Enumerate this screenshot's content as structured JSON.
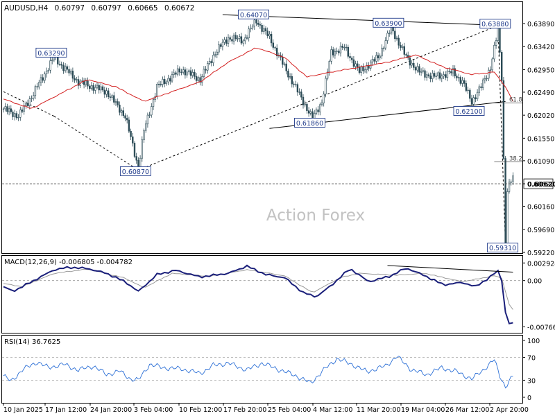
{
  "chart_data": {
    "type": "candlestick",
    "header": {
      "symbol": "AUDUSD,H4",
      "open": "0.60797",
      "high": "0.60797",
      "low": "0.60665",
      "close": "0.60672"
    },
    "watermark": "Action Forex",
    "price_axis": {
      "ticks": [
        "0.63890",
        "0.63420",
        "0.62950",
        "0.62490",
        "0.62020",
        "0.61550",
        "0.61090",
        "0.60620",
        "0.60160",
        "0.59690",
        "0.59220"
      ],
      "current_price": "0.60620"
    },
    "x_axis_labels": [
      "10 Jan 2025",
      "17 Jan 12:00",
      "24 Jan 20:00",
      "3 Feb 04:00",
      "10 Feb 12:00",
      "17 Feb 20:00",
      "25 Feb 04:00",
      "4 Mar 12:00",
      "11 Mar 20:00",
      "19 Mar 04:00",
      "26 Mar 12:00",
      "2 Apr 20:00"
    ],
    "price_labels": [
      {
        "text": "0.63290",
        "idx": 27,
        "price": 0.6329
      },
      {
        "text": "0.60870",
        "idx": 72,
        "price": 0.6087
      },
      {
        "text": "0.64070",
        "idx": 135,
        "price": 0.6407
      },
      {
        "text": "0.61860",
        "idx": 165,
        "price": 0.6186
      },
      {
        "text": "0.63900",
        "idx": 207,
        "price": 0.639
      },
      {
        "text": "0.62100",
        "idx": 250,
        "price": 0.621
      },
      {
        "text": "0.63880",
        "idx": 264,
        "price": 0.6388
      },
      {
        "text": "0.59310",
        "idx": 268,
        "price": 0.5931
      }
    ],
    "fib_labels": [
      {
        "text": "61.8",
        "price": 0.6227
      },
      {
        "text": "38.2",
        "price": 0.6107
      }
    ],
    "price_path": [
      {
        "i": 0,
        "p": 0.6215
      },
      {
        "i": 8,
        "p": 0.62
      },
      {
        "i": 15,
        "p": 0.624
      },
      {
        "i": 27,
        "p": 0.632
      },
      {
        "i": 32,
        "p": 0.63
      },
      {
        "i": 40,
        "p": 0.627
      },
      {
        "i": 55,
        "p": 0.625
      },
      {
        "i": 65,
        "p": 0.62
      },
      {
        "i": 72,
        "p": 0.6095
      },
      {
        "i": 75,
        "p": 0.617
      },
      {
        "i": 82,
        "p": 0.626
      },
      {
        "i": 95,
        "p": 0.6295
      },
      {
        "i": 105,
        "p": 0.6275
      },
      {
        "i": 113,
        "p": 0.633
      },
      {
        "i": 120,
        "p": 0.636
      },
      {
        "i": 128,
        "p": 0.6355
      },
      {
        "i": 135,
        "p": 0.6395
      },
      {
        "i": 142,
        "p": 0.636
      },
      {
        "i": 150,
        "p": 0.63
      },
      {
        "i": 160,
        "p": 0.623
      },
      {
        "i": 165,
        "p": 0.6195
      },
      {
        "i": 170,
        "p": 0.623
      },
      {
        "i": 175,
        "p": 0.633
      },
      {
        "i": 182,
        "p": 0.634
      },
      {
        "i": 190,
        "p": 0.629
      },
      {
        "i": 200,
        "p": 0.632
      },
      {
        "i": 207,
        "p": 0.638
      },
      {
        "i": 215,
        "p": 0.632
      },
      {
        "i": 222,
        "p": 0.629
      },
      {
        "i": 230,
        "p": 0.628
      },
      {
        "i": 240,
        "p": 0.629
      },
      {
        "i": 245,
        "p": 0.627
      },
      {
        "i": 250,
        "p": 0.623
      },
      {
        "i": 255,
        "p": 0.626
      },
      {
        "i": 260,
        "p": 0.63
      },
      {
        "i": 264,
        "p": 0.6375
      },
      {
        "i": 266,
        "p": 0.628
      },
      {
        "i": 268,
        "p": 0.5945
      },
      {
        "i": 269,
        "p": 0.605
      },
      {
        "i": 272,
        "p": 0.6075
      }
    ],
    "ma_path": [
      {
        "i": 0,
        "p": 0.6235
      },
      {
        "i": 15,
        "p": 0.6215
      },
      {
        "i": 30,
        "p": 0.6245
      },
      {
        "i": 45,
        "p": 0.6275
      },
      {
        "i": 60,
        "p": 0.626
      },
      {
        "i": 75,
        "p": 0.623
      },
      {
        "i": 90,
        "p": 0.625
      },
      {
        "i": 105,
        "p": 0.627
      },
      {
        "i": 120,
        "p": 0.631
      },
      {
        "i": 135,
        "p": 0.634
      },
      {
        "i": 150,
        "p": 0.632
      },
      {
        "i": 162,
        "p": 0.628
      },
      {
        "i": 175,
        "p": 0.629
      },
      {
        "i": 190,
        "p": 0.63
      },
      {
        "i": 205,
        "p": 0.631
      },
      {
        "i": 220,
        "p": 0.6325
      },
      {
        "i": 235,
        "p": 0.63
      },
      {
        "i": 250,
        "p": 0.6285
      },
      {
        "i": 262,
        "p": 0.629
      },
      {
        "i": 268,
        "p": 0.626
      },
      {
        "i": 272,
        "p": 0.623
      }
    ],
    "trendlines": [
      {
        "kind": "solid",
        "a": {
          "i": 117,
          "p": 0.6407
        },
        "b": {
          "i": 268,
          "p": 0.6385
        }
      },
      {
        "kind": "solid",
        "a": {
          "i": 142,
          "p": 0.6175
        },
        "b": {
          "i": 268,
          "p": 0.623
        }
      },
      {
        "kind": "dashed",
        "a": {
          "i": 0,
          "p": 0.625
        },
        "b": {
          "i": 27,
          "p": 0.62
        }
      },
      {
        "kind": "dashed",
        "a": {
          "i": 27,
          "p": 0.62
        },
        "b": {
          "i": 72,
          "p": 0.609
        }
      },
      {
        "kind": "dashed",
        "a": {
          "i": 72,
          "p": 0.609
        },
        "b": {
          "i": 264,
          "p": 0.6385
        }
      },
      {
        "kind": "dashed",
        "a": {
          "i": 264,
          "p": 0.6385
        },
        "b": {
          "i": 268,
          "p": 0.5935
        }
      }
    ],
    "macd": {
      "label": "MACD(12,26,9) -0.006805 -0.004782",
      "ticks": [
        "0.002924",
        "0.00",
        "-0.007661"
      ],
      "ylim": [
        -0.0082,
        0.0033
      ],
      "macd_path": [
        {
          "i": 0,
          "v": -0.001
        },
        {
          "i": 5,
          "v": -0.0018
        },
        {
          "i": 15,
          "v": -0.0002
        },
        {
          "i": 27,
          "v": 0.0018
        },
        {
          "i": 35,
          "v": 0.0022
        },
        {
          "i": 45,
          "v": 0.002
        },
        {
          "i": 55,
          "v": 0.0012
        },
        {
          "i": 65,
          "v": -0.0002
        },
        {
          "i": 72,
          "v": -0.0018
        },
        {
          "i": 82,
          "v": 0.001
        },
        {
          "i": 92,
          "v": 0.0017
        },
        {
          "i": 105,
          "v": 0.0006
        },
        {
          "i": 120,
          "v": 0.0012
        },
        {
          "i": 130,
          "v": 0.0024
        },
        {
          "i": 140,
          "v": 0.001
        },
        {
          "i": 150,
          "v": 0.0005
        },
        {
          "i": 160,
          "v": -0.002
        },
        {
          "i": 167,
          "v": -0.0027
        },
        {
          "i": 175,
          "v": -0.0008
        },
        {
          "i": 185,
          "v": 0.002
        },
        {
          "i": 195,
          "v": -0.0002
        },
        {
          "i": 207,
          "v": 0.0008
        },
        {
          "i": 215,
          "v": 0.0021
        },
        {
          "i": 225,
          "v": 0.0008
        },
        {
          "i": 235,
          "v": -0.0007
        },
        {
          "i": 245,
          "v": -0.0003
        },
        {
          "i": 252,
          "v": -0.001
        },
        {
          "i": 258,
          "v": 0.0002
        },
        {
          "i": 264,
          "v": 0.0016
        },
        {
          "i": 266,
          "v": 0.0
        },
        {
          "i": 268,
          "v": -0.0052
        },
        {
          "i": 270,
          "v": -0.0072
        },
        {
          "i": 272,
          "v": -0.007
        }
      ],
      "signal_path": [
        {
          "i": 0,
          "v": -0.0005
        },
        {
          "i": 10,
          "v": -0.001
        },
        {
          "i": 27,
          "v": 0.0012
        },
        {
          "i": 45,
          "v": 0.0019
        },
        {
          "i": 65,
          "v": 0.0004
        },
        {
          "i": 75,
          "v": -0.0012
        },
        {
          "i": 90,
          "v": 0.0012
        },
        {
          "i": 110,
          "v": 0.0007
        },
        {
          "i": 130,
          "v": 0.0018
        },
        {
          "i": 150,
          "v": 0.0008
        },
        {
          "i": 165,
          "v": -0.002
        },
        {
          "i": 180,
          "v": 0.0005
        },
        {
          "i": 190,
          "v": 0.0012
        },
        {
          "i": 210,
          "v": 0.0009
        },
        {
          "i": 225,
          "v": 0.0012
        },
        {
          "i": 245,
          "v": -0.0002
        },
        {
          "i": 262,
          "v": 0.0008
        },
        {
          "i": 266,
          "v": 0.0004
        },
        {
          "i": 270,
          "v": -0.004
        },
        {
          "i": 272,
          "v": -0.0048
        }
      ],
      "divergence": {
        "a": {
          "i": 205,
          "v": 0.0025
        },
        "b": {
          "i": 272,
          "v": 0.0014
        }
      }
    },
    "rsi": {
      "label": "RSI(14) 36.7625",
      "ticks": [
        "100",
        "70",
        "30",
        "0"
      ],
      "levels": [
        70,
        30
      ],
      "ylim": [
        0,
        100
      ],
      "path": [
        {
          "i": 0,
          "v": 38
        },
        {
          "i": 4,
          "v": 28
        },
        {
          "i": 10,
          "v": 48
        },
        {
          "i": 18,
          "v": 62
        },
        {
          "i": 24,
          "v": 52
        },
        {
          "i": 32,
          "v": 58
        },
        {
          "i": 40,
          "v": 48
        },
        {
          "i": 48,
          "v": 55
        },
        {
          "i": 55,
          "v": 40
        },
        {
          "i": 62,
          "v": 46
        },
        {
          "i": 68,
          "v": 32
        },
        {
          "i": 72,
          "v": 30
        },
        {
          "i": 78,
          "v": 58
        },
        {
          "i": 85,
          "v": 52
        },
        {
          "i": 95,
          "v": 50
        },
        {
          "i": 105,
          "v": 42
        },
        {
          "i": 112,
          "v": 56
        },
        {
          "i": 120,
          "v": 60
        },
        {
          "i": 130,
          "v": 48
        },
        {
          "i": 138,
          "v": 60
        },
        {
          "i": 146,
          "v": 50
        },
        {
          "i": 156,
          "v": 38
        },
        {
          "i": 164,
          "v": 25
        },
        {
          "i": 170,
          "v": 45
        },
        {
          "i": 178,
          "v": 68
        },
        {
          "i": 186,
          "v": 58
        },
        {
          "i": 194,
          "v": 45
        },
        {
          "i": 204,
          "v": 55
        },
        {
          "i": 210,
          "v": 72
        },
        {
          "i": 218,
          "v": 48
        },
        {
          "i": 226,
          "v": 40
        },
        {
          "i": 234,
          "v": 52
        },
        {
          "i": 242,
          "v": 45
        },
        {
          "i": 250,
          "v": 32
        },
        {
          "i": 256,
          "v": 48
        },
        {
          "i": 262,
          "v": 66
        },
        {
          "i": 265,
          "v": 38
        },
        {
          "i": 268,
          "v": 18
        },
        {
          "i": 270,
          "v": 28
        },
        {
          "i": 272,
          "v": 37
        }
      ]
    }
  }
}
